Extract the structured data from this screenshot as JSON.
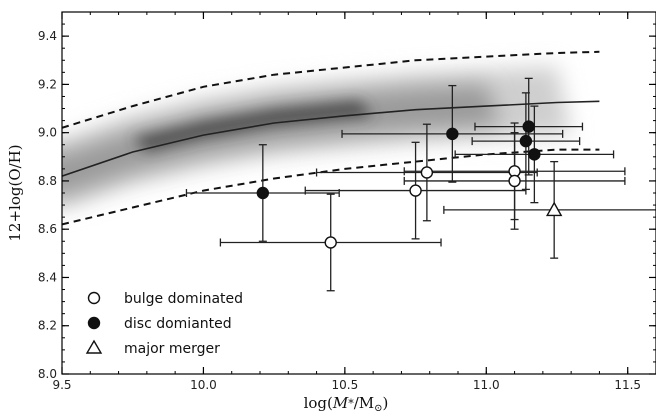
{
  "chart_data": {
    "type": "scatter",
    "xlabel_parts": [
      "log(",
      "M",
      "*",
      "/M",
      "⊙",
      ")"
    ],
    "ylabel": "12+log(O/H)",
    "xlim": [
      9.5,
      11.6
    ],
    "ylim": [
      8.0,
      9.5
    ],
    "x_ticks": [
      9.5,
      10.0,
      10.5,
      11.0,
      11.5
    ],
    "y_ticks": [
      8.0,
      8.2,
      8.4,
      8.6,
      8.8,
      9.0,
      9.2,
      9.4
    ],
    "x_tick_labels": [
      "9.5",
      "10.0",
      "10.5",
      "11.0",
      "11.5"
    ],
    "y_tick_labels": [
      "8.0",
      "8.2",
      "8.4",
      "8.6",
      "8.8",
      "9.0",
      "9.2",
      "9.4"
    ],
    "grid": false,
    "background": "grey density map of the galaxy population along the mass–metallicity relation",
    "relation_curve": {
      "x": [
        9.5,
        9.75,
        10.0,
        10.25,
        10.5,
        10.75,
        11.0,
        11.25,
        11.4
      ],
      "median": [
        8.82,
        8.92,
        8.99,
        9.04,
        9.07,
        9.095,
        9.11,
        9.125,
        9.13
      ],
      "upper": [
        9.02,
        9.11,
        9.19,
        9.24,
        9.27,
        9.3,
        9.315,
        9.33,
        9.335
      ],
      "lower": [
        8.62,
        8.69,
        8.76,
        8.81,
        8.85,
        8.88,
        8.91,
        8.93,
        8.93
      ]
    },
    "legend": {
      "position": "bottom-left",
      "entries": [
        "bulge dominated",
        "disc domianted",
        "major merger"
      ]
    },
    "series": [
      {
        "name": "bulge dominated",
        "marker": "open-circle",
        "points": [
          {
            "x": 10.45,
            "y": 8.545,
            "xerr_lo": 0.39,
            "xerr_hi": 0.39,
            "yerr": 0.2
          },
          {
            "x": 10.75,
            "y": 8.76,
            "xerr_lo": 0.39,
            "xerr_hi": 0.39,
            "yerr": 0.2
          },
          {
            "x": 10.79,
            "y": 8.835,
            "xerr_lo": 0.39,
            "xerr_hi": 0.39,
            "yerr": 0.2
          },
          {
            "x": 11.1,
            "y": 8.84,
            "xerr_lo": 0.39,
            "xerr_hi": 0.39,
            "yerr": 0.2
          },
          {
            "x": 11.1,
            "y": 8.8,
            "xerr_lo": 0.39,
            "xerr_hi": 0.39,
            "yerr": 0.2
          }
        ]
      },
      {
        "name": "disc domianted",
        "marker": "filled-circle",
        "points": [
          {
            "x": 10.21,
            "y": 8.75,
            "xerr_lo": 0.27,
            "xerr_hi": 0.27,
            "yerr": 0.2
          },
          {
            "x": 10.88,
            "y": 8.995,
            "xerr_lo": 0.39,
            "xerr_hi": 0.39,
            "yerr": 0.2
          },
          {
            "x": 11.15,
            "y": 9.025,
            "xerr_lo": 0.19,
            "xerr_hi": 0.19,
            "yerr": 0.2
          },
          {
            "x": 11.14,
            "y": 8.965,
            "xerr_lo": 0.19,
            "xerr_hi": 0.19,
            "yerr": 0.2
          },
          {
            "x": 11.17,
            "y": 8.91,
            "xerr_lo": 0.28,
            "xerr_hi": 0.28,
            "yerr": 0.2
          }
        ]
      },
      {
        "name": "major merger",
        "marker": "open-triangle",
        "points": [
          {
            "x": 11.24,
            "y": 8.68,
            "xerr_lo": 0.39,
            "xerr_hi": 0.39,
            "yerr": 0.2
          }
        ]
      }
    ]
  }
}
